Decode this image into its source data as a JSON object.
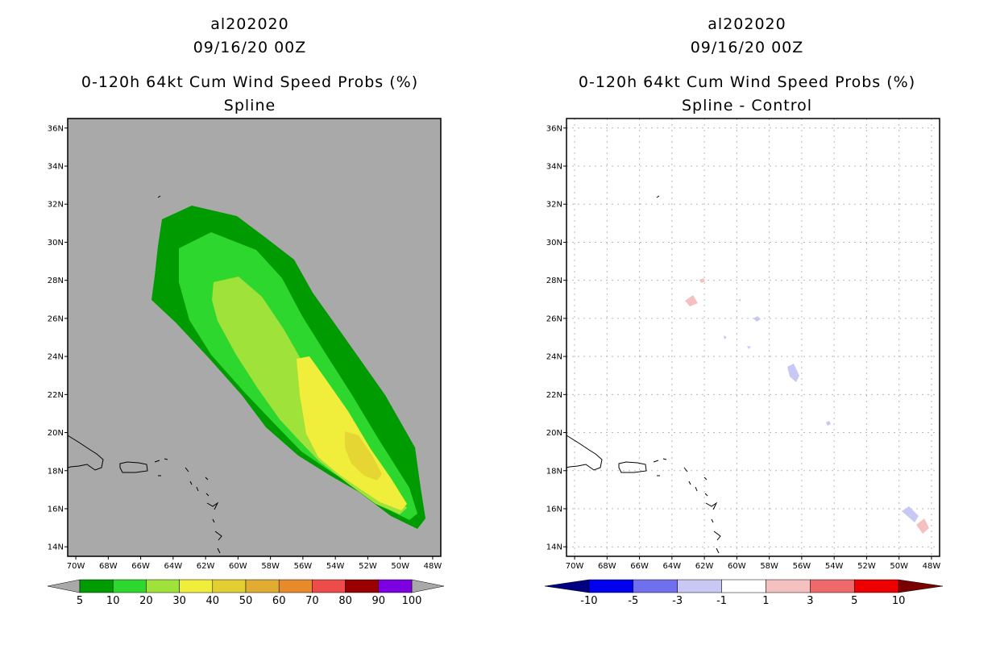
{
  "chart_data": [
    {
      "type": "filled-contour-map",
      "storm_id": "al202020",
      "datetime": "09/16/20 00Z",
      "title": "0-120h 64kt Cum Wind Speed Probs (%)",
      "subtitle": "Spline",
      "lon_range": [
        -70.5,
        -47.5
      ],
      "lat_range": [
        13.5,
        36.5
      ],
      "lon_ticks": [
        "70W",
        "68W",
        "66W",
        "64W",
        "62W",
        "60W",
        "58W",
        "56W",
        "54W",
        "52W",
        "50W",
        "48W"
      ],
      "lat_ticks": [
        "14N",
        "16N",
        "18N",
        "20N",
        "22N",
        "24N",
        "26N",
        "28N",
        "30N",
        "32N",
        "34N",
        "36N"
      ],
      "grid": false,
      "background_color": "#a9a9a9",
      "contour_levels": [
        {
          "min": 5,
          "color": "#009b00"
        },
        {
          "min": 10,
          "color": "#2ed72e"
        },
        {
          "min": 20,
          "color": "#9ee23a"
        },
        {
          "min": 30,
          "color": "#f0ee3a"
        },
        {
          "min": 40,
          "color": "#e4cf32"
        }
      ],
      "colorbar": {
        "labels": [
          "5",
          "10",
          "20",
          "30",
          "40",
          "50",
          "60",
          "70",
          "80",
          "90",
          "100"
        ],
        "colors": [
          "#009b00",
          "#2ed72e",
          "#9ee23a",
          "#f0ee3a",
          "#e4cf32",
          "#e0ad32",
          "#e88a2a",
          "#ee4b4b",
          "#9a0000",
          "#7c00e0"
        ]
      }
    },
    {
      "type": "filled-contour-map",
      "storm_id": "al202020",
      "datetime": "09/16/20 00Z",
      "title": "0-120h 64kt Cum Wind Speed Probs (%)",
      "subtitle": "Spline - Control",
      "lon_range": [
        -70.5,
        -47.5
      ],
      "lat_range": [
        13.5,
        36.5
      ],
      "lon_ticks": [
        "70W",
        "68W",
        "66W",
        "64W",
        "62W",
        "60W",
        "58W",
        "56W",
        "54W",
        "52W",
        "50W",
        "48W"
      ],
      "lat_ticks": [
        "14N",
        "16N",
        "18N",
        "20N",
        "22N",
        "24N",
        "26N",
        "28N",
        "30N",
        "32N",
        "34N",
        "36N"
      ],
      "grid": true,
      "difference_patches": [
        {
          "sign": "positive",
          "lon": -62.6,
          "lat": 26.9
        },
        {
          "sign": "positive",
          "lon": -61.9,
          "lat": 28.0
        },
        {
          "sign": "negative",
          "lon": -58.5,
          "lat": 26.0
        },
        {
          "sign": "negative",
          "lon": -56.0,
          "lat": 23.1
        },
        {
          "sign": "negative",
          "lon": -54.0,
          "lat": 20.6
        },
        {
          "sign": "negative",
          "lon": -48.9,
          "lat": 15.9
        },
        {
          "sign": "positive",
          "lon": -48.0,
          "lat": 15.1
        }
      ],
      "colorbar": {
        "labels": [
          "-10",
          "-5",
          "-3",
          "-1",
          "1",
          "3",
          "5",
          "10"
        ],
        "colors": [
          "#000080",
          "#0000ee",
          "#7070ee",
          "#c8c8f4",
          "#ffffff",
          "#f4c0c0",
          "#ee6a6a",
          "#ee0000",
          "#7a0000"
        ]
      }
    }
  ]
}
